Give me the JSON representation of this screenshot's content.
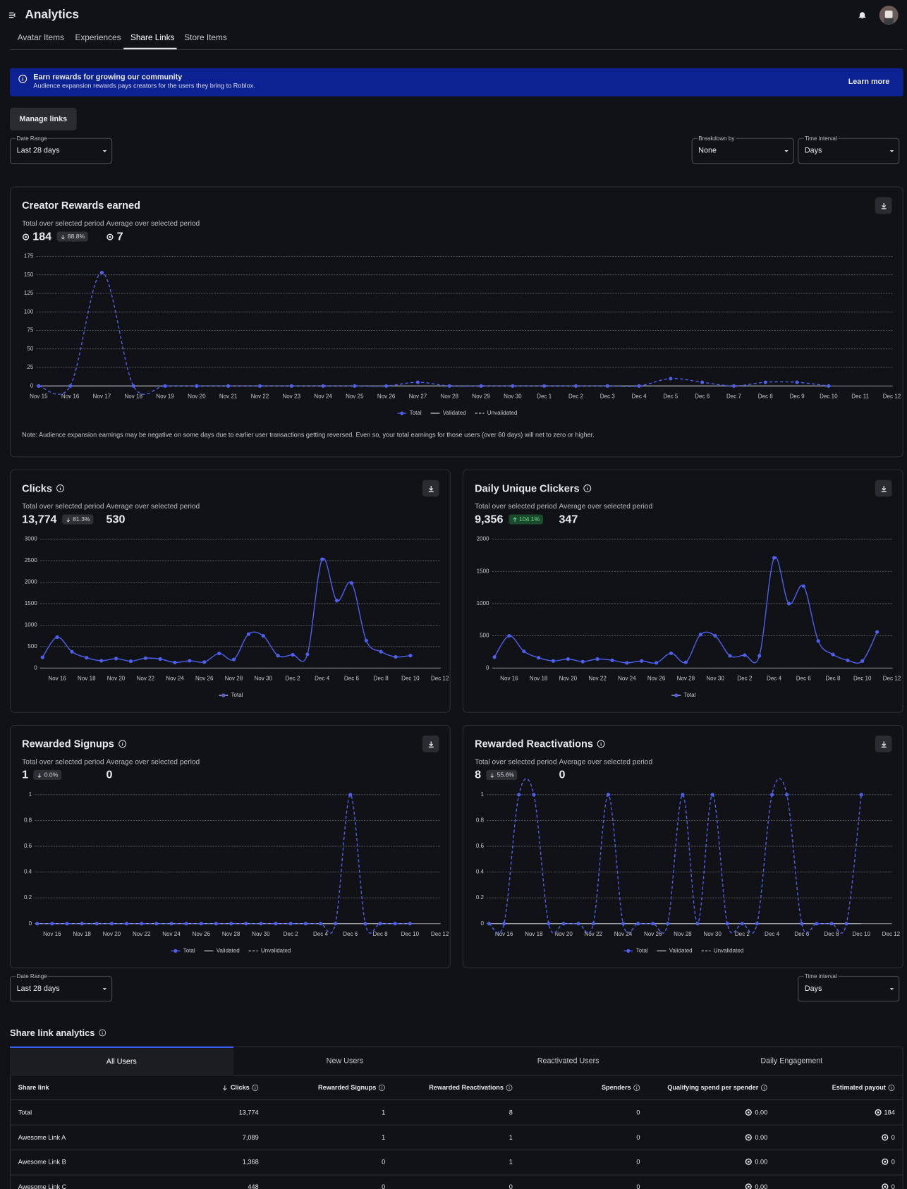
{
  "header": {
    "title": "Analytics"
  },
  "tabs": [
    "Avatar Items",
    "Experiences",
    "Share Links",
    "Store Items"
  ],
  "banner": {
    "title": "Earn rewards for growing our community",
    "text": "Audience expansion rewards pays creators for the users they bring to Roblox.",
    "button": "Learn more"
  },
  "manage_button": "Manage links",
  "filters": [
    {
      "label": "Date Range",
      "value": "Last 28 days"
    },
    {
      "label": "Breakdown by",
      "value": "None"
    },
    {
      "label": "Time interval",
      "value": "Days"
    }
  ],
  "filters_bottom": [
    {
      "label": "Date Range",
      "value": "Last 28 days"
    },
    {
      "label": "Time interval",
      "value": "Days"
    }
  ],
  "chart_data": [
    {
      "type": "line",
      "title": "Creator Rewards earned",
      "stats": {
        "total_label": "Total over selected period",
        "total": "184",
        "change": "88.8%",
        "trend": "down",
        "average_label": "Average over selected period",
        "average": "7"
      },
      "categories": [
        "Nov 15",
        "Nov 16",
        "Nov 17",
        "Nov 18",
        "Nov 19",
        "Nov 20",
        "Nov 21",
        "Nov 22",
        "Nov 23",
        "Nov 24",
        "Nov 25",
        "Nov 26",
        "Nov 27",
        "Nov 28",
        "Nov 29",
        "Nov 30",
        "Dec 1",
        "Dec 2",
        "Dec 3",
        "Dec 4",
        "Dec 5",
        "Dec 6",
        "Dec 7",
        "Dec 8",
        "Dec 9",
        "Dec 10",
        "Dec 11",
        "Dec 12"
      ],
      "series": [
        {
          "name": "Total",
          "color": "#4d60f0",
          "line": "none",
          "markers": true,
          "values": [
            0,
            0,
            153,
            0,
            0,
            0,
            0,
            0,
            0,
            0,
            0,
            0,
            5,
            0,
            0,
            0,
            0,
            0,
            0,
            0,
            10,
            5,
            0,
            5,
            5,
            0,
            null,
            null
          ]
        },
        {
          "name": "Validated",
          "color": "#9a9ca3",
          "line": "solid",
          "markers": false,
          "values": [
            0,
            0,
            0,
            0,
            0,
            0,
            0,
            0,
            0,
            0,
            0,
            0,
            0,
            0,
            0,
            0,
            0,
            0,
            0,
            0,
            0,
            0,
            0,
            0,
            0,
            0,
            null,
            null
          ]
        },
        {
          "name": "Unvalidated",
          "color": "#4d60f0",
          "line": "dashed",
          "markers": false,
          "values": [
            0,
            0,
            153,
            0,
            0,
            0,
            0,
            0,
            0,
            0,
            0,
            0,
            5,
            0,
            0,
            0,
            0,
            0,
            0,
            0,
            10,
            5,
            0,
            5,
            5,
            0,
            null,
            null
          ]
        }
      ],
      "ylim": [
        0,
        175
      ],
      "yticks": [
        0,
        25,
        50,
        75,
        100,
        125,
        150,
        175
      ],
      "grid": true,
      "note": "Note: Audience expansion earnings may be negative on some days due to earlier user transactions getting reversed. Even so, your total earnings for those users (over 60 days) will net to zero or higher."
    },
    {
      "type": "line",
      "title": "Clicks",
      "stats": {
        "total_label": "Total over selected period",
        "total": "13,774",
        "change": "81.3%",
        "trend": "down",
        "average_label": "Average over selected period",
        "average": "530"
      },
      "categories": [
        null,
        "Nov 16",
        null,
        "Nov 18",
        null,
        "Nov 20",
        null,
        "Nov 22",
        null,
        "Nov 24",
        null,
        "Nov 26",
        null,
        "Nov 28",
        null,
        "Nov 30",
        null,
        "Dec 2",
        null,
        "Dec 4",
        null,
        "Dec 6",
        null,
        "Dec 8",
        null,
        "Dec 10",
        null,
        "Dec 12"
      ],
      "series": [
        {
          "name": "Total",
          "color": "#4d60f0",
          "line": "solid",
          "markers": true,
          "values": [
            250,
            720,
            380,
            240,
            170,
            220,
            160,
            230,
            210,
            130,
            170,
            140,
            340,
            200,
            790,
            750,
            290,
            310,
            320,
            2530,
            1570,
            1980,
            640,
            380,
            260,
            290,
            null,
            null
          ]
        }
      ],
      "ylim": [
        0,
        3000
      ],
      "yticks": [
        0,
        500,
        1000,
        1500,
        2000,
        2500,
        3000
      ],
      "grid": true
    },
    {
      "type": "line",
      "title": "Daily Unique Clickers",
      "stats": {
        "total_label": "Total over selected period",
        "total": "9,356",
        "change": "104.1%",
        "trend": "up",
        "average_label": "Average over selected period",
        "average": "347"
      },
      "categories": [
        null,
        "Nov 16",
        null,
        "Nov 18",
        null,
        "Nov 20",
        null,
        "Nov 22",
        null,
        "Nov 24",
        null,
        "Nov 26",
        null,
        "Nov 28",
        null,
        "Nov 30",
        null,
        "Dec 2",
        null,
        "Dec 4",
        null,
        "Dec 6",
        null,
        "Dec 8",
        null,
        "Dec 10",
        null,
        "Dec 12"
      ],
      "series": [
        {
          "name": "Total",
          "color": "#4d60f0",
          "line": "solid",
          "markers": true,
          "values": [
            170,
            500,
            260,
            160,
            110,
            140,
            100,
            140,
            120,
            80,
            110,
            80,
            230,
            90,
            520,
            500,
            190,
            200,
            190,
            1710,
            1000,
            1270,
            420,
            210,
            120,
            110,
            560,
            null
          ]
        }
      ],
      "ylim": [
        0,
        2000
      ],
      "yticks": [
        0,
        500,
        1000,
        1500,
        2000
      ],
      "grid": true
    },
    {
      "type": "line",
      "title": "Rewarded Signups",
      "stats": {
        "total_label": "Total over selected period",
        "total": "1",
        "change": "0.0%",
        "trend": "down",
        "average_label": "Average over selected period",
        "average": "0"
      },
      "categories": [
        null,
        "Nov 16",
        null,
        "Nov 18",
        null,
        "Nov 20",
        null,
        "Nov 22",
        null,
        "Nov 24",
        null,
        "Nov 26",
        null,
        "Nov 28",
        null,
        "Nov 30",
        null,
        "Dec 2",
        null,
        "Dec 4",
        null,
        "Dec 6",
        null,
        "Dec 8",
        null,
        "Dec 10",
        null,
        "Dec 12"
      ],
      "series": [
        {
          "name": "Total",
          "color": "#4d60f0",
          "line": "none",
          "markers": true,
          "values": [
            0,
            0,
            0,
            0,
            0,
            0,
            0,
            0,
            0,
            0,
            0,
            0,
            0,
            0,
            0,
            0,
            0,
            0,
            0,
            0,
            0,
            1,
            0,
            0,
            0,
            0,
            null,
            null
          ]
        },
        {
          "name": "Validated",
          "color": "#9a9ca3",
          "line": "solid",
          "markers": false,
          "values": [
            0,
            0,
            0,
            0,
            0,
            0,
            0,
            0,
            0,
            0,
            0,
            0,
            0,
            0,
            0,
            0,
            0,
            0,
            0,
            0,
            0,
            0,
            0,
            0,
            0,
            0,
            null,
            null
          ]
        },
        {
          "name": "Unvalidated",
          "color": "#4d60f0",
          "line": "dashed",
          "markers": false,
          "values": [
            0,
            0,
            0,
            0,
            0,
            0,
            0,
            0,
            0,
            0,
            0,
            0,
            0,
            0,
            0,
            0,
            0,
            0,
            0,
            0,
            0,
            1,
            0,
            0,
            0,
            0,
            null,
            null
          ]
        }
      ],
      "ylim": [
        0,
        1
      ],
      "yticks": [
        0,
        0.2,
        0.4,
        0.6,
        0.8,
        1
      ],
      "grid": true
    },
    {
      "type": "line",
      "title": "Rewarded Reactivations",
      "stats": {
        "total_label": "Total over selected period",
        "total": "8",
        "change": "55.6%",
        "trend": "down",
        "average_label": "Average over selected period",
        "average": "0"
      },
      "categories": [
        null,
        "Nov 16",
        null,
        "Nov 18",
        null,
        "Nov 20",
        null,
        "Nov 22",
        null,
        "Nov 24",
        null,
        "Nov 26",
        null,
        "Nov 28",
        null,
        "Nov 30",
        null,
        "Dec 2",
        null,
        "Dec 4",
        null,
        "Dec 6",
        null,
        "Dec 8",
        null,
        "Dec 10",
        null,
        "Dec 12"
      ],
      "series": [
        {
          "name": "Total",
          "color": "#4d60f0",
          "line": "none",
          "markers": true,
          "values": [
            0,
            0,
            1,
            1,
            0,
            0,
            0,
            0,
            1,
            0,
            0,
            0,
            0,
            1,
            0,
            1,
            0,
            0,
            0,
            1,
            1,
            0,
            0,
            0,
            0,
            1,
            null,
            null
          ]
        },
        {
          "name": "Validated",
          "color": "#9a9ca3",
          "line": "solid",
          "markers": false,
          "values": [
            0,
            0,
            0,
            0,
            0,
            0,
            0,
            0,
            0,
            0,
            0,
            0,
            0,
            0,
            0,
            0,
            0,
            0,
            0,
            0,
            0,
            0,
            0,
            0,
            0,
            0,
            null,
            null
          ]
        },
        {
          "name": "Unvalidated",
          "color": "#4d60f0",
          "line": "dashed",
          "markers": false,
          "values": [
            0,
            0,
            1,
            1,
            0,
            0,
            0,
            0,
            1,
            0,
            0,
            0,
            0,
            1,
            0,
            1,
            0,
            0,
            0,
            1,
            1,
            0,
            0,
            0,
            0,
            1,
            null,
            null
          ]
        }
      ],
      "ylim": [
        0,
        1
      ],
      "yticks": [
        0,
        0.2,
        0.4,
        0.6,
        0.8,
        1
      ],
      "grid": true
    }
  ],
  "analytics": {
    "title": "Share link analytics",
    "tabs": [
      "All Users",
      "New Users",
      "Reactivated Users",
      "Daily Engagement"
    ],
    "columns": [
      "Share link",
      "Clicks",
      "Rewarded Signups",
      "Rewarded Reactivations",
      "Spenders",
      "Qualifying spend per spender",
      "Estimated payout"
    ],
    "rows": [
      [
        "Total",
        "13,774",
        "1",
        "8",
        "0",
        "0.00",
        "184"
      ],
      [
        "Awesome Link A",
        "7,089",
        "1",
        "1",
        "0",
        "0.00",
        "0"
      ],
      [
        "Awesome Link B",
        "1,368",
        "0",
        "1",
        "0",
        "0.00",
        "0"
      ],
      [
        "Awesome Link C",
        "448",
        "0",
        "0",
        "0",
        "0.00",
        "0"
      ]
    ]
  }
}
